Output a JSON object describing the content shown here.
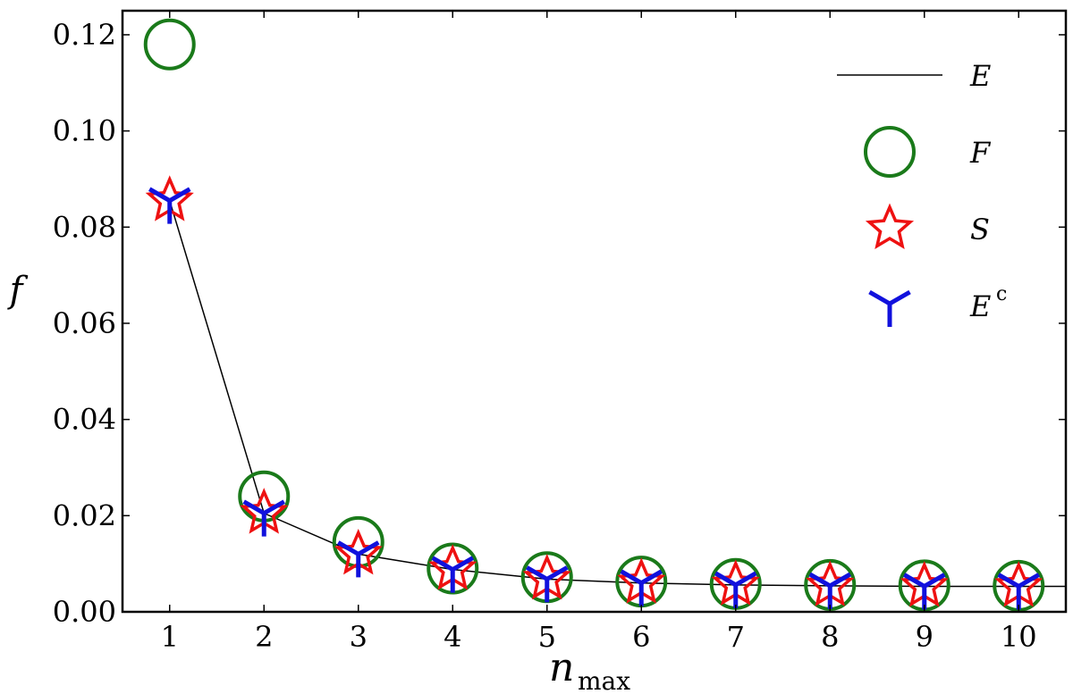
{
  "chart_data": {
    "type": "line",
    "x": [
      1,
      2,
      3,
      4,
      5,
      6,
      7,
      8,
      9,
      10
    ],
    "xlabel_main": "n",
    "xlabel_sub": "max",
    "ylabel": "f",
    "xlim": [
      0.5,
      10.5
    ],
    "ylim": [
      0.0,
      0.125
    ],
    "xticks": [
      1,
      2,
      3,
      4,
      5,
      6,
      7,
      8,
      9,
      10
    ],
    "yticks": [
      0.0,
      0.02,
      0.04,
      0.06,
      0.08,
      0.1,
      0.12
    ],
    "ytick_labels": [
      "0.00",
      "0.02",
      "0.04",
      "0.06",
      "0.08",
      "0.10",
      "0.12"
    ],
    "grid": false,
    "legend_position": "top-right",
    "series": [
      {
        "name": "E",
        "marker": "line",
        "color": "#000000",
        "values": [
          0.0855,
          0.0205,
          0.012,
          0.0088,
          0.0068,
          0.006,
          0.0056,
          0.0054,
          0.0053,
          0.0053
        ]
      },
      {
        "name": "F",
        "marker": "circle",
        "color": "#1a7a1a",
        "values": [
          0.118,
          0.024,
          0.0145,
          0.009,
          0.0072,
          0.0063,
          0.0058,
          0.0056,
          0.0055,
          0.0054
        ]
      },
      {
        "name": "S",
        "marker": "star",
        "color": "#ee1111",
        "values": [
          0.0855,
          0.0205,
          0.012,
          0.0088,
          0.0068,
          0.006,
          0.0056,
          0.0054,
          0.0053,
          0.0053
        ]
      },
      {
        "name": "E",
        "name_sup": "c",
        "marker": "tri",
        "color": "#1111dd",
        "values": [
          0.0855,
          0.0205,
          0.012,
          0.0088,
          0.0068,
          0.006,
          0.0056,
          0.0054,
          0.0053,
          0.0053
        ]
      }
    ]
  }
}
